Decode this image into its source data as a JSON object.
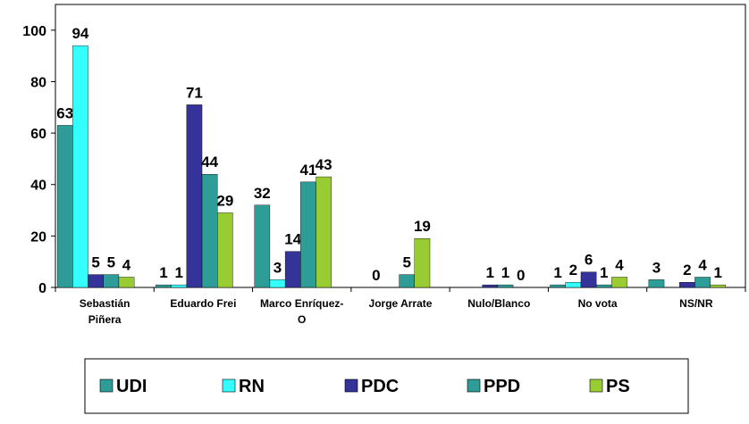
{
  "chart_data": {
    "type": "bar",
    "categories": [
      "Sebastián Piñera",
      "Eduardo Frei",
      "Marco Enríquez-O",
      "Jorge Arrate",
      "Nulo/Blanco",
      "No vota",
      "NS/NR"
    ],
    "series": [
      {
        "name": "UDI",
        "color": "#2e9c97",
        "values": [
          63,
          1,
          32,
          null,
          null,
          1,
          3
        ]
      },
      {
        "name": "RN",
        "color": "#33ffff",
        "values": [
          94,
          1,
          3,
          0,
          null,
          2,
          null
        ]
      },
      {
        "name": "PDC",
        "color": "#333399",
        "values": [
          5,
          71,
          14,
          null,
          1,
          6,
          2
        ]
      },
      {
        "name": "PPD",
        "color": "#2e9c97",
        "values": [
          5,
          44,
          41,
          5,
          1,
          1,
          4
        ]
      },
      {
        "name": "PS",
        "color": "#99cc33",
        "values": [
          4,
          29,
          43,
          19,
          0,
          4,
          1
        ]
      }
    ],
    "ylim": [
      0,
      110
    ],
    "yticks": [
      0,
      20,
      40,
      60,
      80,
      100
    ],
    "legend": "bottom"
  }
}
